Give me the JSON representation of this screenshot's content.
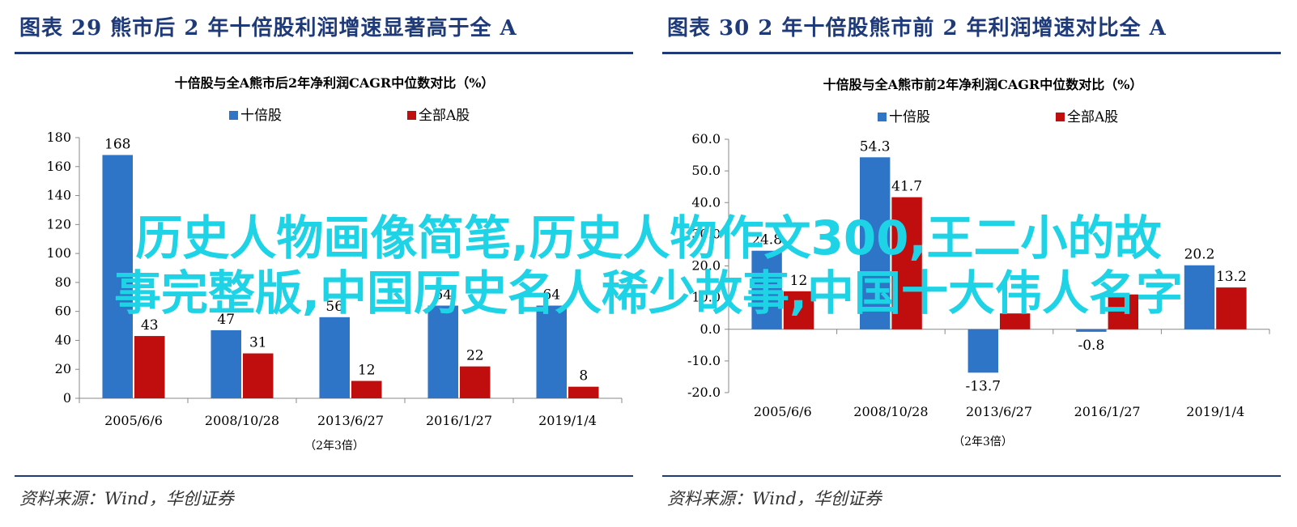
{
  "figures": [
    {
      "id": "left",
      "figure_title": "图表 29   熊市后 2 年十倍股利润增速显著高于全 A",
      "source": "资料来源：Wind，华创证券"
    },
    {
      "id": "right",
      "figure_title": "图表 30   2 年十倍股熊市前 2 年利润增速对比全 A",
      "source": "资料来源：Wind，华创证券"
    }
  ],
  "watermark": {
    "line1": "历史人物画像简笔,历史人物作文300,王二小的故",
    "line2": "事完整版,中国历史名人稀少故事,中国十大伟人名字"
  },
  "colors": {
    "blue": "#2e75c7",
    "red": "#c00d0d",
    "accent": "#1f3a78",
    "watermark": "#1ed3e6"
  },
  "chart_data": [
    {
      "type": "bar",
      "title": "十倍股与全A熊市后2年净利润CAGR中位数对比（%）",
      "categories": [
        "2005/6/6",
        "2008/10/28",
        "2013/6/27",
        "2016/1/27",
        "2019/1/4"
      ],
      "series": [
        {
          "name": "十倍股",
          "values": [
            168,
            47,
            56,
            64,
            64
          ],
          "color": "#2e75c7"
        },
        {
          "name": "全部A股",
          "values": [
            43,
            31,
            12,
            22,
            8
          ],
          "color": "#c00d0d"
        }
      ],
      "ylim": [
        0,
        180
      ],
      "yticks": [
        "180",
        "160",
        "140",
        "120",
        "100",
        "80",
        "60",
        "40",
        "20",
        "0"
      ],
      "ytick_values": [
        180,
        160,
        140,
        120,
        100,
        80,
        60,
        40,
        20,
        0
      ],
      "note": "（2年3倍）",
      "grid": false,
      "legend": "top-center"
    },
    {
      "type": "bar",
      "title": "十倍股与全A熊市前2年净利润CAGR中位数对比（%）",
      "categories": [
        "2005/6/6",
        "2008/10/28",
        "2013/6/27",
        "2016/1/27",
        "2019/1/4"
      ],
      "series": [
        {
          "name": "十倍股",
          "values": [
            24.8,
            54.3,
            -13.7,
            -0.8,
            20.2
          ],
          "labels": [
            "24.8",
            "54.3",
            "-13.7",
            "-0.8",
            "20.2"
          ],
          "color": "#2e75c7"
        },
        {
          "name": "全部A股",
          "values": [
            12,
            41.7,
            5,
            11,
            13.2
          ],
          "labels": [
            "12",
            "41.7",
            "",
            "",
            "13.2"
          ],
          "color": "#c00d0d"
        }
      ],
      "ylim": [
        -20,
        60
      ],
      "yticks": [
        "60.0",
        "50.0",
        "40.0",
        "30.0",
        "20.0",
        "10.0",
        "0.0",
        "-10.0",
        "-20.0"
      ],
      "ytick_values": [
        60,
        50,
        40,
        30,
        20,
        10,
        0,
        -10,
        -20
      ],
      "note": "（2年3倍）",
      "grid": false,
      "legend": "top-center"
    }
  ]
}
